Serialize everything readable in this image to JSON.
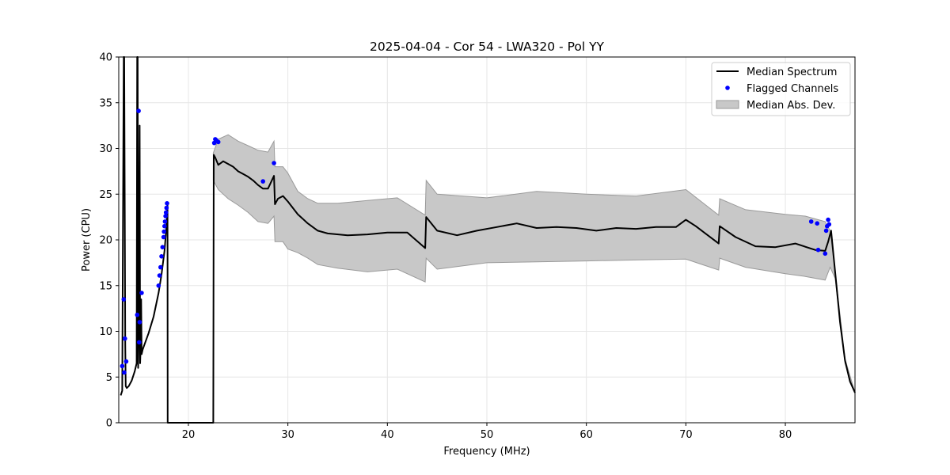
{
  "chart_data": {
    "type": "line",
    "title": "2025-04-04 - Cor 54 - LWA320 - Pol YY",
    "xlabel": "Frequency (MHz)",
    "ylabel": "Power (CPU)",
    "xlim": [
      13.0,
      87.0
    ],
    "ylim": [
      0,
      40
    ],
    "xticks": [
      20,
      30,
      40,
      50,
      60,
      70,
      80
    ],
    "yticks": [
      0,
      5,
      10,
      15,
      20,
      25,
      30,
      35,
      40
    ],
    "grid": true,
    "legend_position": "top-right",
    "colors": {
      "median": "#000000",
      "flagged": "#0000ff",
      "mad_fill": "#c8c8c8",
      "mad_edge": "#9a9a9a",
      "grid": "#e6e6e6"
    },
    "series": [
      {
        "name": "Median Spectrum",
        "kind": "line",
        "x": [
          13.2,
          13.35,
          13.5,
          13.55,
          13.65,
          13.7,
          13.8,
          14.0,
          14.3,
          14.6,
          14.8,
          14.85,
          14.9,
          14.95,
          15.0,
          15.1,
          15.15,
          15.2,
          15.25,
          15.3,
          15.4,
          15.6,
          16.0,
          16.5,
          17.0,
          17.3,
          17.6,
          17.8,
          17.9,
          17.92,
          22.5,
          22.55,
          22.7,
          23.0,
          23.5,
          24.0,
          24.5,
          25.0,
          25.5,
          26.0,
          26.5,
          27.0,
          27.5,
          28.0,
          28.6,
          28.7,
          29.0,
          29.5,
          30.0,
          31.0,
          32.0,
          33.0,
          34.0,
          36.0,
          38.0,
          40.0,
          42.0,
          43.8,
          43.9,
          45.0,
          47.0,
          49.0,
          51.0,
          53.0,
          55.0,
          57.0,
          59.0,
          61.0,
          63.0,
          65.0,
          67.0,
          69.0,
          70.0,
          71.0,
          73.3,
          73.4,
          75.0,
          77.0,
          79.0,
          81.0,
          83.0,
          84.0,
          84.3,
          84.6,
          85.0,
          85.5,
          86.0,
          86.5,
          87.0
        ],
        "values": [
          3.0,
          3.5,
          40.0,
          40.0,
          8.5,
          4.0,
          3.8,
          4.0,
          4.6,
          5.6,
          6.5,
          40.0,
          40.0,
          6.0,
          9.0,
          32.5,
          6.5,
          8.0,
          13.5,
          7.5,
          8.0,
          8.6,
          9.8,
          11.6,
          14.2,
          16.2,
          18.8,
          21.5,
          23.8,
          0.0,
          0.0,
          29.3,
          29.0,
          28.2,
          28.6,
          28.3,
          28.0,
          27.5,
          27.2,
          26.9,
          26.5,
          26.0,
          25.6,
          25.6,
          27.0,
          23.9,
          24.5,
          24.8,
          24.2,
          22.8,
          21.8,
          21.0,
          20.7,
          20.5,
          20.6,
          20.8,
          20.8,
          19.1,
          22.5,
          21.0,
          20.5,
          21.0,
          21.4,
          21.8,
          21.3,
          21.4,
          21.3,
          21.0,
          21.3,
          21.2,
          21.4,
          21.4,
          22.2,
          21.5,
          19.6,
          21.5,
          20.3,
          19.3,
          19.2,
          19.6,
          18.9,
          18.8,
          19.8,
          21.0,
          16.5,
          11.0,
          6.8,
          4.5,
          3.3
        ]
      },
      {
        "name": "Flagged Channels",
        "kind": "scatter",
        "x": [
          13.35,
          13.5,
          13.55,
          13.62,
          13.75,
          14.85,
          15.0,
          15.05,
          15.1,
          15.3,
          17.0,
          17.1,
          17.2,
          17.3,
          17.4,
          17.5,
          17.55,
          17.6,
          17.65,
          17.7,
          17.75,
          17.8,
          17.85,
          22.6,
          22.7,
          22.8,
          23.0,
          27.5,
          28.6,
          82.6,
          83.2,
          83.3,
          84.0,
          84.1,
          84.2,
          84.3,
          84.4
        ],
        "values": [
          6.2,
          13.5,
          5.5,
          9.2,
          6.7,
          11.8,
          34.1,
          8.8,
          11.0,
          14.2,
          15.0,
          16.1,
          17.0,
          18.2,
          19.2,
          20.3,
          20.9,
          21.5,
          22.0,
          22.6,
          23.0,
          23.5,
          24.0,
          30.6,
          31.0,
          30.9,
          30.7,
          26.4,
          28.4,
          22.0,
          21.8,
          18.9,
          18.5,
          21.0,
          21.5,
          22.2,
          21.7
        ]
      },
      {
        "name": "Median Abs. Dev.",
        "kind": "band",
        "x": [
          22.5,
          23.0,
          24.0,
          25.0,
          26.0,
          27.0,
          28.0,
          28.6,
          28.7,
          29.5,
          30.0,
          31.0,
          32.0,
          33.0,
          35.0,
          38.0,
          41.0,
          43.8,
          43.9,
          45.0,
          50.0,
          55.0,
          60.0,
          65.0,
          70.0,
          73.3,
          73.4,
          76.0,
          80.0,
          82.0,
          84.0,
          84.5,
          85.0,
          86.0,
          87.0
        ],
        "upper": [
          29.5,
          31.0,
          31.5,
          30.8,
          30.3,
          29.8,
          29.6,
          30.8,
          28.0,
          28.0,
          27.3,
          25.3,
          24.5,
          24.0,
          24.0,
          24.3,
          24.6,
          22.7,
          26.5,
          25.0,
          24.6,
          25.3,
          25.0,
          24.8,
          25.5,
          22.7,
          24.5,
          23.3,
          22.8,
          22.6,
          22.0,
          21.0,
          16.5,
          7.0,
          3.3
        ],
        "lower": [
          26.5,
          25.5,
          24.5,
          23.8,
          23.0,
          22.0,
          21.8,
          22.6,
          19.8,
          19.8,
          19.0,
          18.6,
          18.0,
          17.3,
          16.9,
          16.5,
          16.8,
          15.4,
          18.0,
          16.8,
          17.5,
          17.6,
          17.7,
          17.8,
          17.9,
          16.7,
          18.0,
          17.0,
          16.3,
          16.0,
          15.6,
          17.0,
          15.8,
          6.5,
          3.2
        ]
      }
    ]
  }
}
